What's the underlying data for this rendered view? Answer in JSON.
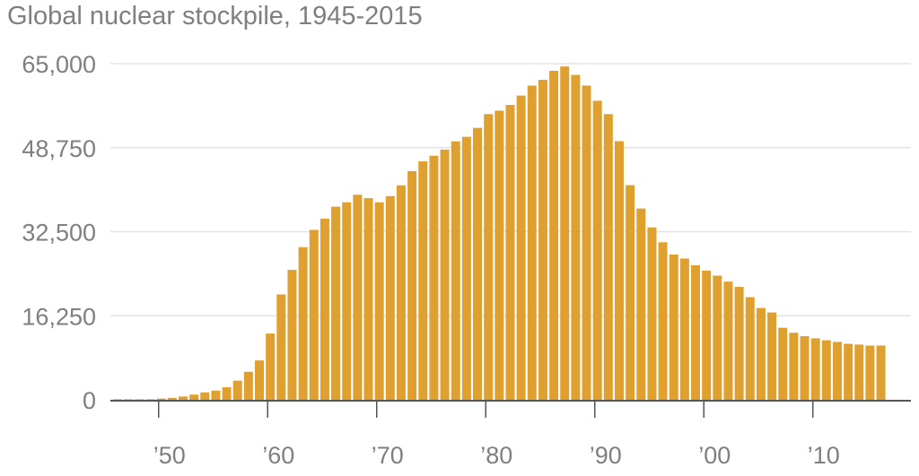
{
  "chart_data": {
    "type": "bar",
    "title": "Global nuclear stockpile, 1945-2015",
    "bar_color": "#e0a030",
    "grid_color": "#e3e3e3",
    "axis_color": "#555555",
    "text_color": "#7f7f7f",
    "ylim": [
      0,
      65000
    ],
    "xlim": [
      1944,
      2016
    ],
    "grid": true,
    "y_ticks": [
      {
        "value": 0,
        "label": "0"
      },
      {
        "value": 16250,
        "label": "16,250"
      },
      {
        "value": 32500,
        "label": "32,500"
      },
      {
        "value": 48750,
        "label": "48,750"
      },
      {
        "value": 65000,
        "label": "65,000"
      }
    ],
    "x_ticks": [
      {
        "value": 1950,
        "label": "’50"
      },
      {
        "value": 1960,
        "label": "’60"
      },
      {
        "value": 1970,
        "label": "’70"
      },
      {
        "value": 1980,
        "label": "’80"
      },
      {
        "value": 1990,
        "label": "’90"
      },
      {
        "value": 2000,
        "label": "’00"
      },
      {
        "value": 2010,
        "label": "’10"
      }
    ],
    "x": [
      1945,
      1946,
      1947,
      1948,
      1949,
      1950,
      1951,
      1952,
      1953,
      1954,
      1955,
      1956,
      1957,
      1958,
      1959,
      1960,
      1961,
      1962,
      1963,
      1964,
      1965,
      1966,
      1967,
      1968,
      1969,
      1970,
      1971,
      1972,
      1973,
      1974,
      1975,
      1976,
      1977,
      1978,
      1979,
      1980,
      1981,
      1982,
      1983,
      1984,
      1985,
      1986,
      1987,
      1988,
      1989,
      1990,
      1991,
      1992,
      1993,
      1994,
      1995,
      1996,
      1997,
      1998,
      1999,
      2000,
      2001,
      2002,
      2003,
      2004,
      2005,
      2006,
      2007,
      2008,
      2009,
      2010,
      2011,
      2012,
      2013,
      2014,
      2015
    ],
    "values": [
      6,
      11,
      32,
      110,
      235,
      369,
      640,
      1005,
      1436,
      1781,
      2422,
      3692,
      5414,
      7607,
      12810,
      20368,
      25127,
      29518,
      32861,
      35031,
      37337,
      38199,
      39651,
      38993,
      38186,
      39388,
      41482,
      44204,
      46112,
      47200,
      48385,
      49981,
      50854,
      52585,
      55244,
      55909,
      57017,
      58824,
      60752,
      61871,
      63617,
      64449,
      62829,
      60762,
      57829,
      55241,
      50017,
      41506,
      36985,
      33329,
      30459,
      28081,
      27312,
      26019,
      24980,
      24006,
      22849,
      21831,
      19849,
      17757,
      16887,
      13926,
      12967,
      12298,
      11889,
      11509,
      11193,
      10823,
      10679,
      10473,
      10493
    ]
  }
}
